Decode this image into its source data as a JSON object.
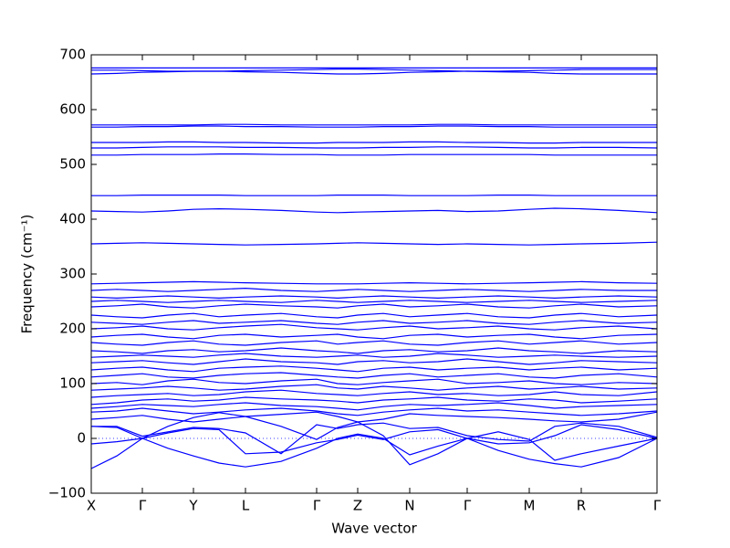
{
  "chart_data": {
    "type": "line",
    "x_label": "Wave vector",
    "y_label": "Frequency (cm⁻¹)",
    "x": [
      0,
      28,
      56,
      84,
      112,
      140,
      169,
      208,
      247,
      270,
      292,
      320,
      349,
      380,
      412,
      446,
      480,
      508,
      537,
      578,
      620
    ],
    "xlim": [
      0,
      620
    ],
    "xticks": [
      {
        "value": 0,
        "label": "X"
      },
      {
        "value": 56,
        "label": "Γ"
      },
      {
        "value": 112,
        "label": "Y"
      },
      {
        "value": 169,
        "label": "L"
      },
      {
        "value": 247,
        "label": "Γ"
      },
      {
        "value": 292,
        "label": "Z"
      },
      {
        "value": 349,
        "label": "N"
      },
      {
        "value": 412,
        "label": "Γ"
      },
      {
        "value": 480,
        "label": "M"
      },
      {
        "value": 537,
        "label": "R"
      },
      {
        "value": 620,
        "label": "Γ"
      }
    ],
    "ylim": [
      -100,
      700
    ],
    "yticks": [
      {
        "value": -100,
        "label": "−100"
      },
      0,
      100,
      200,
      300,
      400,
      500,
      600,
      700
    ],
    "reference_line": 0,
    "color": "#0000ff",
    "series": [
      {
        "values": [
          -55,
          -32,
          0,
          22,
          38,
          47,
          40,
          22,
          -2,
          20,
          30,
          5,
          -48,
          -28,
          0,
          -22,
          -38,
          -46,
          -52,
          -35,
          0
        ]
      },
      {
        "values": [
          -10,
          -6,
          0,
          -18,
          -32,
          -45,
          -52,
          -42,
          -18,
          0,
          8,
          0,
          -30,
          -14,
          0,
          12,
          -2,
          -40,
          -28,
          -14,
          0
        ]
      },
      {
        "values": [
          22,
          20,
          0,
          10,
          18,
          16,
          -28,
          -25,
          -8,
          -2,
          6,
          -2,
          12,
          16,
          0,
          -10,
          -8,
          5,
          25,
          16,
          0
        ]
      },
      {
        "values": [
          22,
          22,
          4,
          12,
          20,
          18,
          10,
          -28,
          25,
          18,
          25,
          28,
          18,
          20,
          5,
          -2,
          -5,
          22,
          28,
          22,
          2
        ]
      },
      {
        "values": [
          35,
          38,
          42,
          35,
          30,
          35,
          40,
          44,
          48,
          40,
          30,
          35,
          45,
          42,
          40,
          38,
          35,
          32,
          30,
          35,
          48
        ]
      },
      {
        "values": [
          48,
          50,
          55,
          50,
          45,
          48,
          52,
          55,
          50,
          45,
          42,
          48,
          52,
          55,
          50,
          52,
          48,
          45,
          42,
          45,
          50
        ]
      },
      {
        "values": [
          55,
          58,
          62,
          60,
          58,
          62,
          65,
          60,
          58,
          55,
          52,
          58,
          62,
          60,
          62,
          65,
          60,
          55,
          58,
          60,
          62
        ]
      },
      {
        "values": [
          62,
          65,
          70,
          72,
          68,
          70,
          75,
          72,
          70,
          68,
          65,
          70,
          72,
          75,
          70,
          68,
          72,
          70,
          65,
          68,
          72
        ]
      },
      {
        "values": [
          75,
          78,
          80,
          82,
          78,
          80,
          85,
          88,
          82,
          80,
          78,
          82,
          85,
          80,
          82,
          78,
          80,
          85,
          80,
          78,
          85
        ]
      },
      {
        "values": [
          88,
          90,
          92,
          95,
          92,
          88,
          90,
          95,
          98,
          92,
          90,
          95,
          92,
          88,
          92,
          95,
          90,
          92,
          95,
          90,
          92
        ]
      },
      {
        "values": [
          100,
          102,
          98,
          105,
          108,
          102,
          100,
          105,
          108,
          100,
          98,
          102,
          105,
          108,
          100,
          102,
          105,
          100,
          98,
          102,
          100
        ]
      },
      {
        "values": [
          112,
          115,
          118,
          112,
          110,
          115,
          118,
          120,
          115,
          112,
          110,
          115,
          118,
          112,
          115,
          118,
          112,
          110,
          115,
          118,
          112
        ]
      },
      {
        "values": [
          125,
          128,
          130,
          125,
          122,
          128,
          130,
          132,
          128,
          125,
          122,
          128,
          130,
          125,
          128,
          130,
          125,
          128,
          130,
          125,
          128
        ]
      },
      {
        "values": [
          138,
          140,
          142,
          138,
          135,
          140,
          145,
          140,
          138,
          135,
          140,
          142,
          138,
          140,
          145,
          140,
          135,
          138,
          142,
          140,
          138
        ]
      },
      {
        "values": [
          148,
          150,
          152,
          150,
          148,
          152,
          155,
          150,
          148,
          150,
          152,
          148,
          150,
          155,
          152,
          148,
          150,
          152,
          150,
          148,
          150
        ]
      },
      {
        "values": [
          160,
          158,
          155,
          160,
          162,
          158,
          160,
          165,
          160,
          158,
          155,
          160,
          162,
          158,
          160,
          165,
          160,
          158,
          155,
          160,
          158
        ]
      },
      {
        "values": [
          175,
          172,
          170,
          175,
          178,
          172,
          170,
          175,
          178,
          172,
          175,
          178,
          172,
          170,
          175,
          178,
          172,
          175,
          178,
          172,
          175
        ]
      },
      {
        "values": [
          185,
          188,
          190,
          185,
          182,
          188,
          190,
          185,
          188,
          190,
          185,
          182,
          188,
          190,
          185,
          188,
          190,
          185,
          182,
          188,
          190
        ]
      },
      {
        "values": [
          200,
          202,
          205,
          200,
          198,
          202,
          205,
          208,
          202,
          200,
          198,
          202,
          205,
          200,
          202,
          205,
          200,
          198,
          202,
          205,
          200
        ]
      },
      {
        "values": [
          212,
          210,
          208,
          212,
          215,
          210,
          212,
          215,
          210,
          208,
          212,
          215,
          210,
          212,
          215,
          210,
          208,
          212,
          215,
          210,
          212
        ]
      },
      {
        "values": [
          225,
          222,
          220,
          225,
          228,
          222,
          225,
          228,
          222,
          220,
          225,
          228,
          222,
          225,
          228,
          222,
          220,
          225,
          228,
          222,
          225
        ]
      },
      {
        "values": [
          240,
          242,
          245,
          240,
          238,
          242,
          245,
          242,
          240,
          238,
          242,
          245,
          240,
          242,
          245,
          240,
          238,
          242,
          245,
          240,
          242
        ]
      },
      {
        "values": [
          250,
          252,
          250,
          248,
          250,
          252,
          250,
          248,
          252,
          250,
          248,
          250,
          252,
          250,
          248,
          250,
          252,
          250,
          248,
          250,
          252
        ]
      },
      {
        "values": [
          258,
          256,
          258,
          260,
          258,
          256,
          258,
          260,
          258,
          256,
          258,
          260,
          258,
          256,
          258,
          260,
          258,
          256,
          258,
          260,
          258
        ]
      },
      {
        "values": [
          270,
          272,
          270,
          268,
          270,
          272,
          274,
          270,
          268,
          270,
          272,
          270,
          268,
          270,
          272,
          270,
          268,
          270,
          272,
          270,
          270
        ]
      },
      {
        "values": [
          282,
          283,
          284,
          285,
          286,
          285,
          284,
          283,
          282,
          282,
          282,
          283,
          284,
          283,
          282,
          283,
          284,
          285,
          286,
          284,
          283
        ]
      },
      {
        "values": [
          355,
          356,
          357,
          356,
          355,
          354,
          353,
          354,
          355,
          356,
          357,
          356,
          355,
          354,
          355,
          354,
          353,
          354,
          355,
          356,
          358
        ]
      },
      {
        "values": [
          415,
          414,
          413,
          415,
          418,
          419,
          418,
          416,
          413,
          412,
          413,
          414,
          415,
          416,
          414,
          415,
          418,
          420,
          419,
          416,
          412
        ]
      },
      {
        "values": [
          443,
          443,
          444,
          444,
          444,
          444,
          443,
          443,
          443,
          444,
          444,
          444,
          443,
          443,
          443,
          444,
          444,
          443,
          443,
          443,
          443
        ]
      },
      {
        "values": [
          517,
          517,
          518,
          518,
          518,
          519,
          519,
          518,
          518,
          517,
          517,
          517,
          518,
          518,
          518,
          518,
          518,
          517,
          517,
          517,
          517
        ]
      },
      {
        "values": [
          530,
          530,
          531,
          532,
          532,
          532,
          531,
          531,
          530,
          530,
          530,
          531,
          531,
          532,
          532,
          531,
          530,
          530,
          531,
          531,
          530
        ]
      },
      {
        "values": [
          540,
          540,
          540,
          541,
          541,
          540,
          540,
          539,
          539,
          540,
          540,
          540,
          541,
          541,
          540,
          540,
          539,
          539,
          540,
          540,
          540
        ]
      },
      {
        "values": [
          568,
          568,
          569,
          569,
          570,
          570,
          569,
          569,
          568,
          568,
          568,
          569,
          569,
          570,
          570,
          569,
          569,
          568,
          568,
          568,
          568
        ]
      },
      {
        "values": [
          572,
          572,
          572,
          572,
          572,
          573,
          573,
          572,
          572,
          572,
          572,
          572,
          572,
          573,
          573,
          572,
          572,
          572,
          572,
          572,
          572
        ]
      },
      {
        "values": [
          665,
          666,
          668,
          669,
          670,
          670,
          669,
          668,
          666,
          665,
          665,
          666,
          668,
          669,
          670,
          669,
          668,
          666,
          665,
          665,
          665
        ]
      },
      {
        "values": [
          672,
          672,
          671,
          670,
          670,
          670,
          671,
          672,
          673,
          674,
          674,
          673,
          672,
          671,
          670,
          670,
          671,
          672,
          673,
          673,
          673
        ]
      },
      {
        "values": [
          676,
          676,
          676,
          676,
          676,
          676,
          676,
          676,
          676,
          676,
          676,
          676,
          676,
          676,
          676,
          676,
          676,
          676,
          676,
          676,
          676
        ]
      }
    ]
  }
}
